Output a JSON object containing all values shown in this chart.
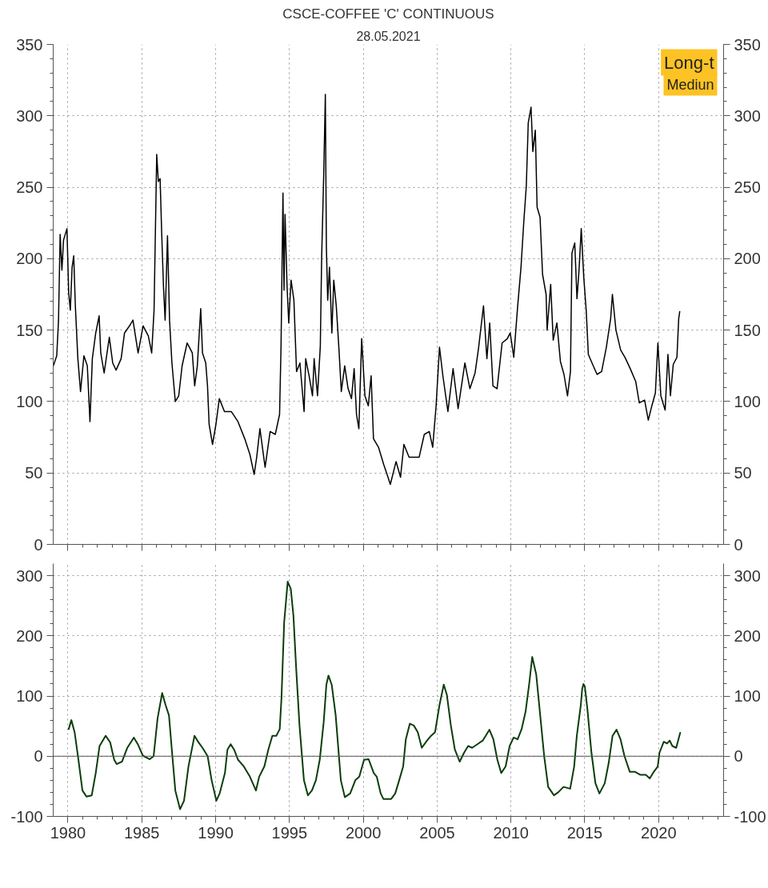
{
  "chart_data": [
    {
      "type": "line",
      "title": "CSCE-COFFEE 'C' CONTINUOUS",
      "subtitle": "28.05.2021",
      "annotations": [
        "Long-t",
        "Mediun"
      ],
      "xlim": [
        1979,
        2024.4
      ],
      "xticks": [
        {
          "value": 1980,
          "label": null
        },
        {
          "value": 1985,
          "label": null
        },
        {
          "value": 1990,
          "label": null
        },
        {
          "value": 1995,
          "label": null
        },
        {
          "value": 2000,
          "label": null
        },
        {
          "value": 2005,
          "label": null
        },
        {
          "value": 2010,
          "label": null
        },
        {
          "value": 2015,
          "label": null
        },
        {
          "value": 2020,
          "label": null
        }
      ],
      "ylim": [
        0,
        350
      ],
      "yticks": [
        0,
        50,
        100,
        150,
        200,
        250,
        300,
        350
      ],
      "y2lim": [
        0,
        350
      ],
      "y2ticks": [
        0,
        50,
        100,
        150,
        200,
        250,
        300,
        350
      ],
      "grid": true,
      "tick_labels": "y",
      "series": [
        {
          "color": "#000000",
          "x": [
            1979.01,
            1979.24,
            1979.36,
            1979.47,
            1979.59,
            1979.7,
            1979.93,
            1980.05,
            1980.16,
            1980.28,
            1980.39,
            1980.5,
            1980.67,
            1980.85,
            1981.08,
            1981.31,
            1981.49,
            1981.65,
            1981.88,
            1982.11,
            1982.22,
            1982.45,
            1982.8,
            1983.03,
            1983.26,
            1983.6,
            1983.83,
            1984.17,
            1984.4,
            1984.75,
            1985.09,
            1985.44,
            1985.67,
            1985.83,
            1986.01,
            1986.12,
            1986.24,
            1986.35,
            1986.47,
            1986.58,
            1986.74,
            1986.88,
            1987.04,
            1987.27,
            1987.5,
            1987.73,
            1988.07,
            1988.42,
            1988.58,
            1988.76,
            1988.99,
            1989.11,
            1989.33,
            1989.45,
            1989.56,
            1989.79,
            1990.02,
            1990.25,
            1990.6,
            1991.06,
            1991.51,
            1991.97,
            1992.32,
            1992.61,
            1992.78,
            1993.0,
            1993.35,
            1993.69,
            1994.04,
            1994.33,
            1994.43,
            1994.56,
            1994.63,
            1994.7,
            1994.84,
            1994.95,
            1995.11,
            1995.3,
            1995.48,
            1995.71,
            1995.99,
            1996.1,
            1996.33,
            1996.56,
            1996.67,
            1996.9,
            1997.09,
            1997.18,
            1997.32,
            1997.43,
            1997.5,
            1997.59,
            1997.71,
            1997.87,
            1998.0,
            1998.17,
            1998.35,
            1998.51,
            1998.74,
            1998.97,
            1999.2,
            1999.38,
            1999.54,
            1999.7,
            1999.89,
            2000.11,
            2000.34,
            2000.53,
            2000.69,
            2001.03,
            2001.38,
            2001.61,
            2001.83,
            2002.22,
            2002.52,
            2002.75,
            2003.1,
            2003.44,
            2003.78,
            2004.13,
            2004.47,
            2004.7,
            2004.93,
            2005.16,
            2005.39,
            2005.73,
            2006.08,
            2006.42,
            2006.88,
            2007.22,
            2007.57,
            2007.8,
            2008.14,
            2008.37,
            2008.56,
            2008.78,
            2009.06,
            2009.4,
            2009.75,
            2009.95,
            2010.19,
            2010.44,
            2010.68,
            2010.87,
            2011.04,
            2011.17,
            2011.36,
            2011.48,
            2011.65,
            2011.77,
            2011.97,
            2012.14,
            2012.38,
            2012.45,
            2012.69,
            2012.86,
            2013.11,
            2013.35,
            2013.59,
            2013.83,
            2014.03,
            2014.13,
            2014.32,
            2014.47,
            2014.61,
            2014.76,
            2014.93,
            2015.1,
            2015.24,
            2015.53,
            2015.83,
            2016.14,
            2016.46,
            2016.75,
            2016.87,
            2017.11,
            2017.43,
            2017.72,
            2018.08,
            2018.45,
            2018.69,
            2019.05,
            2019.3,
            2019.54,
            2019.78,
            2019.95,
            2020.15,
            2020.44,
            2020.63,
            2020.8,
            2020.99,
            2021.24,
            2021.36,
            2021.43
          ],
          "values": [
            125,
            132,
            157,
            217,
            192,
            213,
            221,
            176,
            164,
            194,
            202,
            167,
            130,
            107,
            132,
            125,
            86,
            130,
            148,
            160,
            134,
            120,
            145,
            127,
            122,
            130,
            148,
            153,
            157,
            134,
            153,
            146,
            134,
            164,
            273,
            254,
            256,
            217,
            180,
            157,
            216,
            157,
            127,
            100,
            104,
            125,
            141,
            134,
            111,
            125,
            165,
            134,
            127,
            111,
            84,
            70,
            84,
            102,
            93,
            93,
            86,
            74,
            63,
            49,
            61,
            81,
            54,
            79,
            77,
            91,
            139,
            246,
            178,
            231,
            180,
            155,
            185,
            171,
            121,
            127,
            93,
            130,
            118,
            104,
            130,
            104,
            139,
            201,
            259,
            315,
            208,
            171,
            194,
            148,
            185,
            167,
            137,
            107,
            125,
            109,
            102,
            123,
            91,
            81,
            144,
            104,
            97,
            118,
            74,
            68,
            56,
            49,
            42,
            58,
            47,
            70,
            61,
            61,
            61,
            77,
            79,
            68,
            97,
            138,
            118,
            93,
            123,
            95,
            127,
            109,
            120,
            137,
            167,
            130,
            155,
            111,
            109,
            141,
            144,
            148,
            131,
            165,
            194,
            226,
            251,
            295,
            306,
            275,
            290,
            236,
            229,
            189,
            175,
            150,
            182,
            143,
            155,
            128,
            119,
            104,
            121,
            204,
            211,
            172,
            192,
            221,
            187,
            163,
            133,
            126,
            119,
            121,
            138,
            158,
            175,
            150,
            136,
            131,
            123,
            114,
            99,
            101,
            87,
            97,
            106,
            141,
            104,
            94,
            133,
            104,
            126,
            131,
            158,
            163
          ]
        }
      ]
    },
    {
      "type": "line",
      "xlim": [
        1979,
        2024.4
      ],
      "xticks": [
        1980,
        1985,
        1990,
        1995,
        2000,
        2005,
        2010,
        2015,
        2020
      ],
      "ylim": [
        -100,
        320
      ],
      "yticks": [
        -100,
        0,
        100,
        200,
        300
      ],
      "y2lim": [
        -100,
        320
      ],
      "y2ticks": [
        -100,
        0,
        100,
        200,
        300
      ],
      "grid": true,
      "ref_lines": [
        {
          "axis": "y",
          "value": 0,
          "color": "#555555",
          "line_style": "solid"
        }
      ],
      "series": [
        {
          "color": "#0b3d0b",
          "x": [
            1980.05,
            1980.23,
            1980.45,
            1980.71,
            1980.98,
            1981.25,
            1981.61,
            1981.88,
            1982.14,
            1982.55,
            1982.86,
            1983.13,
            1983.3,
            1983.66,
            1984.02,
            1984.46,
            1984.73,
            1985.07,
            1985.54,
            1985.8,
            1986.07,
            1986.38,
            1986.61,
            1986.84,
            1987.05,
            1987.27,
            1987.59,
            1987.86,
            1988.16,
            1988.57,
            1988.84,
            1989.11,
            1989.46,
            1989.73,
            1990.05,
            1990.27,
            1990.63,
            1990.8,
            1991.02,
            1991.25,
            1991.52,
            1991.88,
            1992.32,
            1992.73,
            1992.95,
            1993.3,
            1993.57,
            1993.84,
            1994.11,
            1994.34,
            1994.46,
            1994.64,
            1994.88,
            1995.09,
            1995.27,
            1995.45,
            1995.68,
            1995.98,
            1996.25,
            1996.52,
            1996.79,
            1997.05,
            1997.32,
            1997.5,
            1997.64,
            1997.86,
            1998.13,
            1998.48,
            1998.75,
            1999.11,
            1999.46,
            1999.73,
            2000.05,
            2000.36,
            2000.71,
            2000.91,
            2001.18,
            2001.36,
            2001.89,
            2002.16,
            2002.43,
            2002.7,
            2002.88,
            2003.15,
            2003.42,
            2003.69,
            2003.96,
            2004.32,
            2004.59,
            2004.86,
            2005.16,
            2005.45,
            2005.66,
            2005.93,
            2006.2,
            2006.53,
            2006.83,
            2007.1,
            2007.37,
            2007.73,
            2008.09,
            2008.54,
            2008.81,
            2009.08,
            2009.34,
            2009.64,
            2009.91,
            2010.18,
            2010.45,
            2010.72,
            2010.99,
            2011.23,
            2011.44,
            2011.71,
            2011.98,
            2012.25,
            2012.52,
            2012.91,
            2013.2,
            2013.56,
            2014.01,
            2014.28,
            2014.46,
            2014.73,
            2014.82,
            2014.91,
            2015.0,
            2015.17,
            2015.45,
            2015.72,
            2015.99,
            2016.35,
            2016.62,
            2016.88,
            2017.15,
            2017.42,
            2017.69,
            2018.05,
            2018.41,
            2018.77,
            2019.13,
            2019.4,
            2019.67,
            2019.94,
            2020.06,
            2020.35,
            2020.57,
            2020.75,
            2020.93,
            2021.19,
            2021.46
          ],
          "values": [
            45,
            60,
            40,
            -6,
            -57,
            -67,
            -65,
            -28,
            17,
            34,
            23,
            -6,
            -13,
            -9,
            14,
            31,
            20,
            1,
            -5,
            0,
            63,
            105,
            85,
            68,
            6,
            -57,
            -88,
            -74,
            -17,
            34,
            23,
            14,
            0,
            -40,
            -74,
            -62,
            -28,
            11,
            20,
            11,
            -6,
            -16,
            -34,
            -57,
            -34,
            -17,
            11,
            34,
            34,
            45,
            97,
            222,
            290,
            278,
            233,
            148,
            51,
            -40,
            -65,
            -57,
            -40,
            -6,
            57,
            119,
            134,
            119,
            68,
            -40,
            -68,
            -62,
            -40,
            -34,
            -6,
            -5,
            -28,
            -34,
            -62,
            -71,
            -71,
            -62,
            -40,
            -17,
            28,
            54,
            51,
            40,
            14,
            26,
            34,
            40,
            85,
            119,
            102,
            51,
            11,
            -9,
            6,
            17,
            14,
            20,
            26,
            44,
            28,
            -6,
            -28,
            -17,
            17,
            31,
            28,
            45,
            74,
            119,
            165,
            136,
            68,
            0,
            -51,
            -65,
            -60,
            -51,
            -54,
            -17,
            34,
            85,
            111,
            120,
            116,
            80,
            6,
            -45,
            -62,
            -45,
            -11,
            34,
            44,
            28,
            0,
            -26,
            -26,
            -31,
            -31,
            -37,
            -26,
            -17,
            6,
            24,
            21,
            26,
            17,
            14,
            39
          ]
        }
      ]
    }
  ]
}
